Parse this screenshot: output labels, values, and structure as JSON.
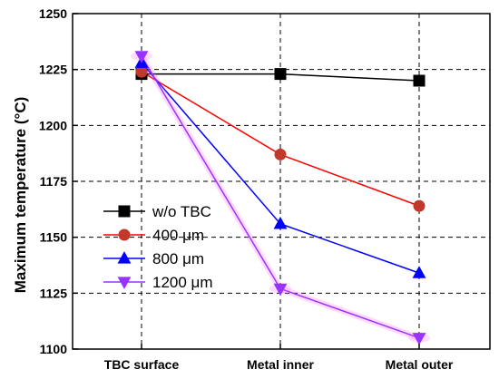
{
  "chart_data": {
    "type": "line",
    "title": "",
    "xlabel": "",
    "ylabel": "Maximum temperature (°C)",
    "categories": [
      "TBC surface",
      "Metal inner",
      "Metal outer"
    ],
    "ylim": [
      1100,
      1250
    ],
    "yticks": [
      1100,
      1125,
      1150,
      1175,
      1200,
      1225,
      1250
    ],
    "grid": true,
    "legend_position": "lower-left",
    "series": [
      {
        "name": "w/o TBC",
        "values": [
          1223,
          1223,
          1220
        ],
        "color": "#000000",
        "marker": "square"
      },
      {
        "name": "400 μm",
        "values": [
          1224,
          1187,
          1164
        ],
        "color": "#ff0000",
        "marker": "circle",
        "marker_fill": "#c0392b"
      },
      {
        "name": "800 μm",
        "values": [
          1228,
          1156,
          1134
        ],
        "color": "#0000ff",
        "marker": "triangle-up"
      },
      {
        "name": "1200 μm",
        "values": [
          1231,
          1127,
          1105
        ],
        "color": "#9933ff",
        "marker": "triangle-down",
        "glow": "#ff66ff"
      }
    ]
  }
}
